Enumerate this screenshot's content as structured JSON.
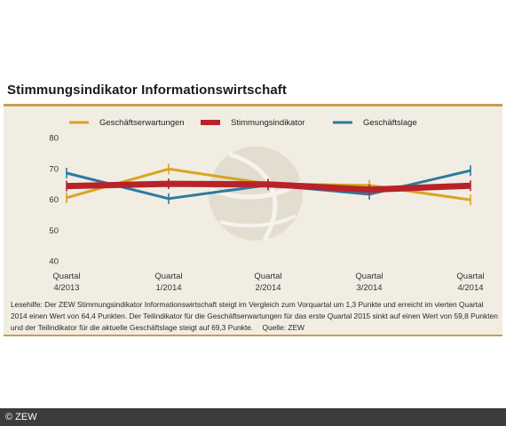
{
  "title": "Stimmungsindikator Informationswirtschaft",
  "caption": "Lesehilfe: Der ZEW Stimmungsindikator Informationswirtschaft steigt im Vergleich zum Vorquartal um 1,3 Punkte und erreicht im vierten Quartal 2014 einen Wert von 64,4 Punkten. Der Teilindikator für die Geschäftserwartungen für das erste Quartal 2015 sinkt auf einen Wert von 59,8 Punkten und der Teilindikator für die aktuelle Geschäftslage steigt auf 69,3 Punkte.",
  "source": "Quelle: ZEW",
  "copyright": "© ZEW",
  "colors": {
    "panel": "#f1ede3",
    "gold": "#d9a521",
    "red": "#b8232a",
    "blue": "#2b7aa3",
    "axis": "#777777",
    "globe": "#e3ddd0"
  },
  "chart_data": {
    "type": "line",
    "categories": [
      [
        "Quartal",
        "4/2013"
      ],
      [
        "Quartal",
        "1/2014"
      ],
      [
        "Quartal",
        "2/2014"
      ],
      [
        "Quartal",
        "3/2014"
      ],
      [
        "Quartal",
        "4/2014"
      ]
    ],
    "ylim": [
      40,
      80
    ],
    "yticks": [
      40,
      50,
      60,
      70,
      80
    ],
    "grid": false,
    "legend": "top",
    "series": [
      {
        "name": "Geschäftserwartungen",
        "color": "#d9a521",
        "values": [
          60.5,
          69.8,
          65.0,
          64.5,
          59.8
        ]
      },
      {
        "name": "Stimmungsindikator",
        "color": "#b8232a",
        "values": [
          64.3,
          65.0,
          64.8,
          63.1,
          64.4
        ]
      },
      {
        "name": "Geschäftslage",
        "color": "#2b7aa3",
        "values": [
          68.5,
          60.2,
          64.6,
          61.6,
          69.3
        ]
      }
    ]
  }
}
